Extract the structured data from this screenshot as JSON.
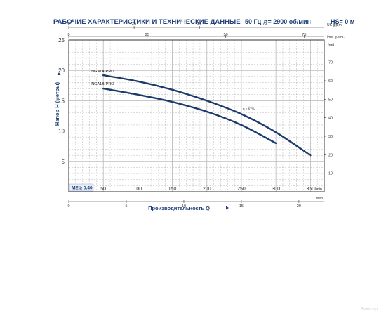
{
  "header": {
    "title": "РАБОЧИЕ ХАРАКТЕРИСТИКИ И ТЕХНИЧЕСКИЕ ДАННЫЕ",
    "freq": "50 Гц",
    "speed": "n= 2900 об/мин",
    "hs": "HS= 0 м"
  },
  "watermark": "Вимхор",
  "chart_data": {
    "type": "line",
    "xlabel": "Производительность Q",
    "ylabel": "Напор H (метры)",
    "x_unit": "l/min",
    "xlim": [
      0,
      370
    ],
    "ylim": [
      0,
      25
    ],
    "x_ticks": [
      50,
      100,
      150,
      200,
      250,
      300,
      350
    ],
    "y_ticks": [
      5,
      10,
      15,
      20,
      25
    ],
    "grid": true,
    "right_axis": {
      "unit": "feet",
      "ticks": [
        10,
        20,
        30,
        40,
        50,
        60,
        70
      ]
    },
    "top_axes": [
      {
        "unit": "US g.p.m.",
        "ticks": [
          0,
          25,
          50,
          75
        ]
      },
      {
        "unit": "imp. g.p.m.",
        "ticks": [
          0,
          25,
          50,
          75
        ]
      }
    ],
    "bottom_axis": {
      "unit": "m³/h",
      "ticks": [
        0,
        5,
        10,
        15,
        20
      ]
    },
    "series": [
      {
        "name": "NGA1A-PRO",
        "color": "#1d3a6c",
        "x": [
          50,
          100,
          150,
          200,
          250,
          300,
          350
        ],
        "y": [
          19.2,
          18.2,
          16.8,
          15.0,
          12.8,
          9.8,
          6.0
        ]
      },
      {
        "name": "NGA1B-PRO",
        "color": "#1d3a6c",
        "x": [
          50,
          100,
          150,
          200,
          250,
          300
        ],
        "y": [
          17.0,
          16.0,
          14.8,
          13.2,
          11.0,
          8.0
        ]
      }
    ],
    "annotations": [
      {
        "text": "η = 67%",
        "x": 250,
        "y": 13.7
      }
    ],
    "mei": "MEI≥ 0.40"
  }
}
